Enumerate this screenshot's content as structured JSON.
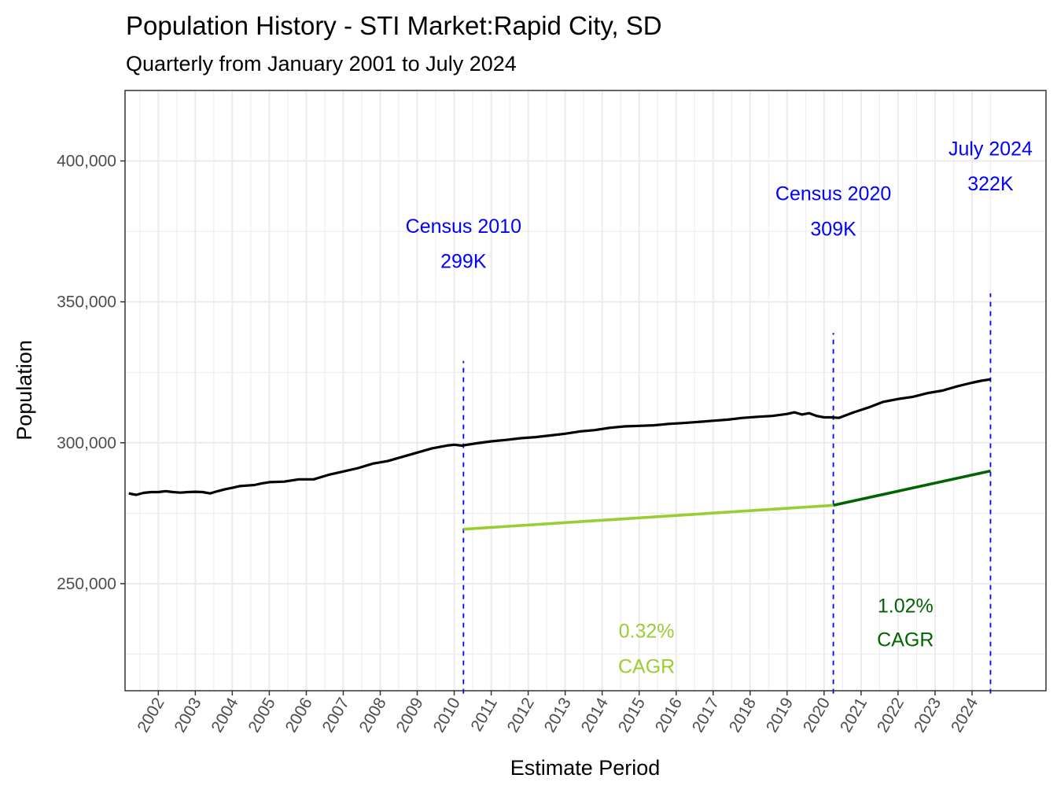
{
  "chart_data": {
    "type": "line",
    "title": "Population History - STI Market:Rapid City, SD",
    "subtitle": "Quarterly from January 2001 to July 2024",
    "xlabel": "Estimate Period",
    "ylabel": "Population",
    "xlim": [
      2001.1,
      2026.0
    ],
    "ylim": [
      212000,
      425000
    ],
    "y_ticks": [
      250000,
      300000,
      350000,
      400000
    ],
    "y_tick_labels": [
      "250,000",
      "300,000",
      "350,000",
      "400,000"
    ],
    "x_tick_labels": [
      "2002",
      "2003",
      "2004",
      "2005",
      "2006",
      "2007",
      "2008",
      "2009",
      "2010",
      "2011",
      "2012",
      "2013",
      "2014",
      "2015",
      "2016",
      "2017",
      "2018",
      "2019",
      "2020",
      "2021",
      "2022",
      "2023",
      "2024"
    ],
    "grid": true,
    "legend": "none",
    "colors": {
      "population_line": "#000000",
      "cagr_2010_2020": "#9acd32",
      "cagr_2020_2024": "#006400",
      "annotation": "#0000ff",
      "grid": "#ebebeb",
      "panel_border": "#333333"
    },
    "series": [
      {
        "name": "Population",
        "color": "#000000",
        "x": [
          2001.2,
          2001.4,
          2001.6,
          2001.8,
          2002.0,
          2002.2,
          2002.4,
          2002.6,
          2002.8,
          2003.0,
          2003.2,
          2003.4,
          2003.6,
          2003.8,
          2004.0,
          2004.2,
          2004.4,
          2004.6,
          2004.8,
          2005.0,
          2005.4,
          2005.8,
          2006.2,
          2006.6,
          2007.0,
          2007.4,
          2007.8,
          2008.2,
          2008.6,
          2009.0,
          2009.4,
          2009.8,
          2010.0,
          2010.2,
          2010.6,
          2011.0,
          2011.4,
          2011.8,
          2012.2,
          2012.6,
          2013.0,
          2013.4,
          2013.8,
          2014.2,
          2014.6,
          2015.0,
          2015.4,
          2015.8,
          2016.2,
          2016.6,
          2017.0,
          2017.4,
          2017.8,
          2018.2,
          2018.6,
          2019.0,
          2019.2,
          2019.4,
          2019.6,
          2019.8,
          2020.0,
          2020.2,
          2020.4,
          2020.8,
          2021.2,
          2021.6,
          2022.0,
          2022.4,
          2022.8,
          2023.2,
          2023.6,
          2024.0,
          2024.25,
          2024.5
        ],
        "y": [
          282000,
          281500,
          282200,
          282500,
          282500,
          282800,
          282500,
          282300,
          282500,
          282600,
          282500,
          282000,
          282800,
          283500,
          284000,
          284600,
          284800,
          285000,
          285600,
          286000,
          286200,
          287000,
          287000,
          288600,
          289800,
          291000,
          292600,
          293500,
          295000,
          296500,
          298000,
          299000,
          299300,
          299000,
          299800,
          300500,
          301000,
          301600,
          302000,
          302600,
          303200,
          304000,
          304500,
          305300,
          305800,
          306000,
          306200,
          306700,
          307000,
          307400,
          307800,
          308200,
          308800,
          309200,
          309500,
          310200,
          310800,
          310000,
          310500,
          309500,
          309000,
          309000,
          308800,
          310800,
          312500,
          314500,
          315500,
          316300,
          317600,
          318500,
          320000,
          321300,
          322000,
          322500
        ]
      },
      {
        "name": "0.32% CAGR trend (2010-2020)",
        "color": "#9acd32",
        "x": [
          2010.25,
          2020.25
        ],
        "y": [
          269300,
          277800
        ]
      },
      {
        "name": "1.02% CAGR trend (2020-2024)",
        "color": "#006400",
        "x": [
          2020.25,
          2024.5
        ],
        "y": [
          277800,
          290000
        ]
      }
    ],
    "reference_lines": [
      {
        "x": 2010.25,
        "y_from": 211000,
        "y_to": 329000,
        "style": "dashed",
        "color": "#0000ff"
      },
      {
        "x": 2020.25,
        "y_from": 211000,
        "y_to": 339000,
        "style": "dashed",
        "color": "#0000ff"
      },
      {
        "x": 2024.5,
        "y_from": 211000,
        "y_to": 353000,
        "style": "dashed",
        "color": "#0000ff"
      }
    ],
    "annotations": [
      {
        "lines": [
          "Census 2010",
          "299K"
        ],
        "x": 2010.25,
        "y": [
          374500,
          362000
        ],
        "color": "#0000ff"
      },
      {
        "lines": [
          "Census 2020",
          "309K"
        ],
        "x": 2020.25,
        "y": [
          386000,
          373500
        ],
        "color": "#0000ff"
      },
      {
        "lines": [
          "July 2024",
          "322K"
        ],
        "x": 2024.5,
        "y": [
          402000,
          389500
        ],
        "color": "#0000ff"
      },
      {
        "lines": [
          "0.32%",
          " CAGR"
        ],
        "x": 2015.2,
        "y": [
          230800,
          218300
        ],
        "color": "#9acd32"
      },
      {
        "lines": [
          "1.02%",
          " CAGR"
        ],
        "x": 2022.2,
        "y": [
          239800,
          227800
        ],
        "color": "#006400"
      }
    ]
  }
}
